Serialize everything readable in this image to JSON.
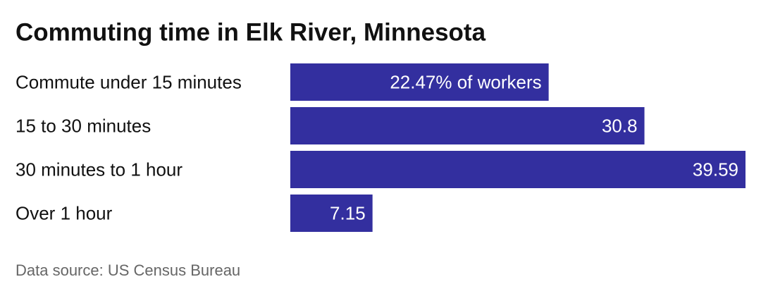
{
  "chart_data": {
    "type": "bar",
    "orientation": "horizontal",
    "title": "Commuting time in Elk River, Minnesota",
    "categories": [
      "Commute under 15 minutes",
      "15 to 30 minutes",
      "30 minutes to 1 hour",
      "Over 1 hour"
    ],
    "values": [
      22.47,
      30.8,
      39.59,
      7.15
    ],
    "value_labels": [
      "22.47% of workers",
      "30.8",
      "39.59",
      "7.15"
    ],
    "color": "#332f9f",
    "source": "Data source: US Census Bureau"
  }
}
